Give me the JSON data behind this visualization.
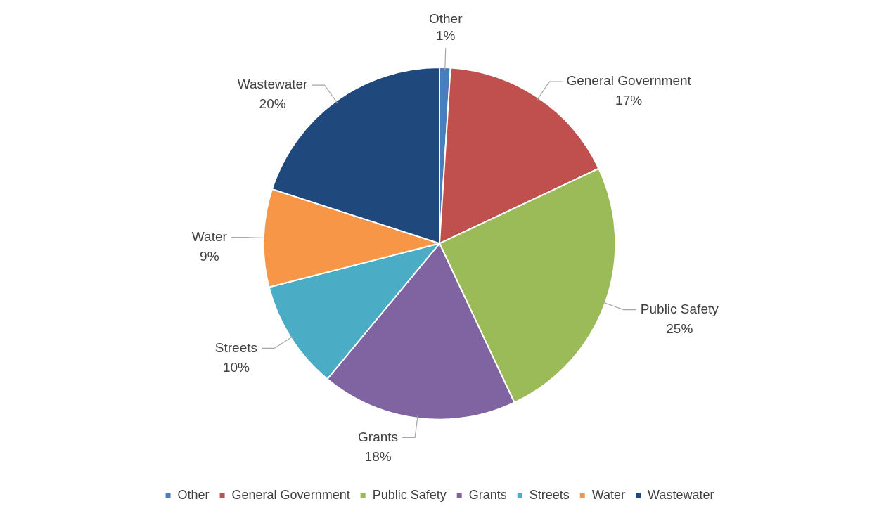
{
  "chart_data": {
    "type": "pie",
    "categories": [
      "Other",
      "General Government",
      "Public Safety",
      "Grants",
      "Streets",
      "Water",
      "Wastewater"
    ],
    "values": [
      1,
      17,
      25,
      18,
      10,
      9,
      20
    ],
    "value_labels": [
      "1%",
      "17%",
      "25%",
      "18%",
      "10%",
      "9%",
      "20%"
    ],
    "colors": [
      "#4a7ebb",
      "#c0504d",
      "#9bbb59",
      "#8064a2",
      "#4bacc6",
      "#f79646",
      "#1f497d"
    ],
    "legend": "bottom"
  }
}
